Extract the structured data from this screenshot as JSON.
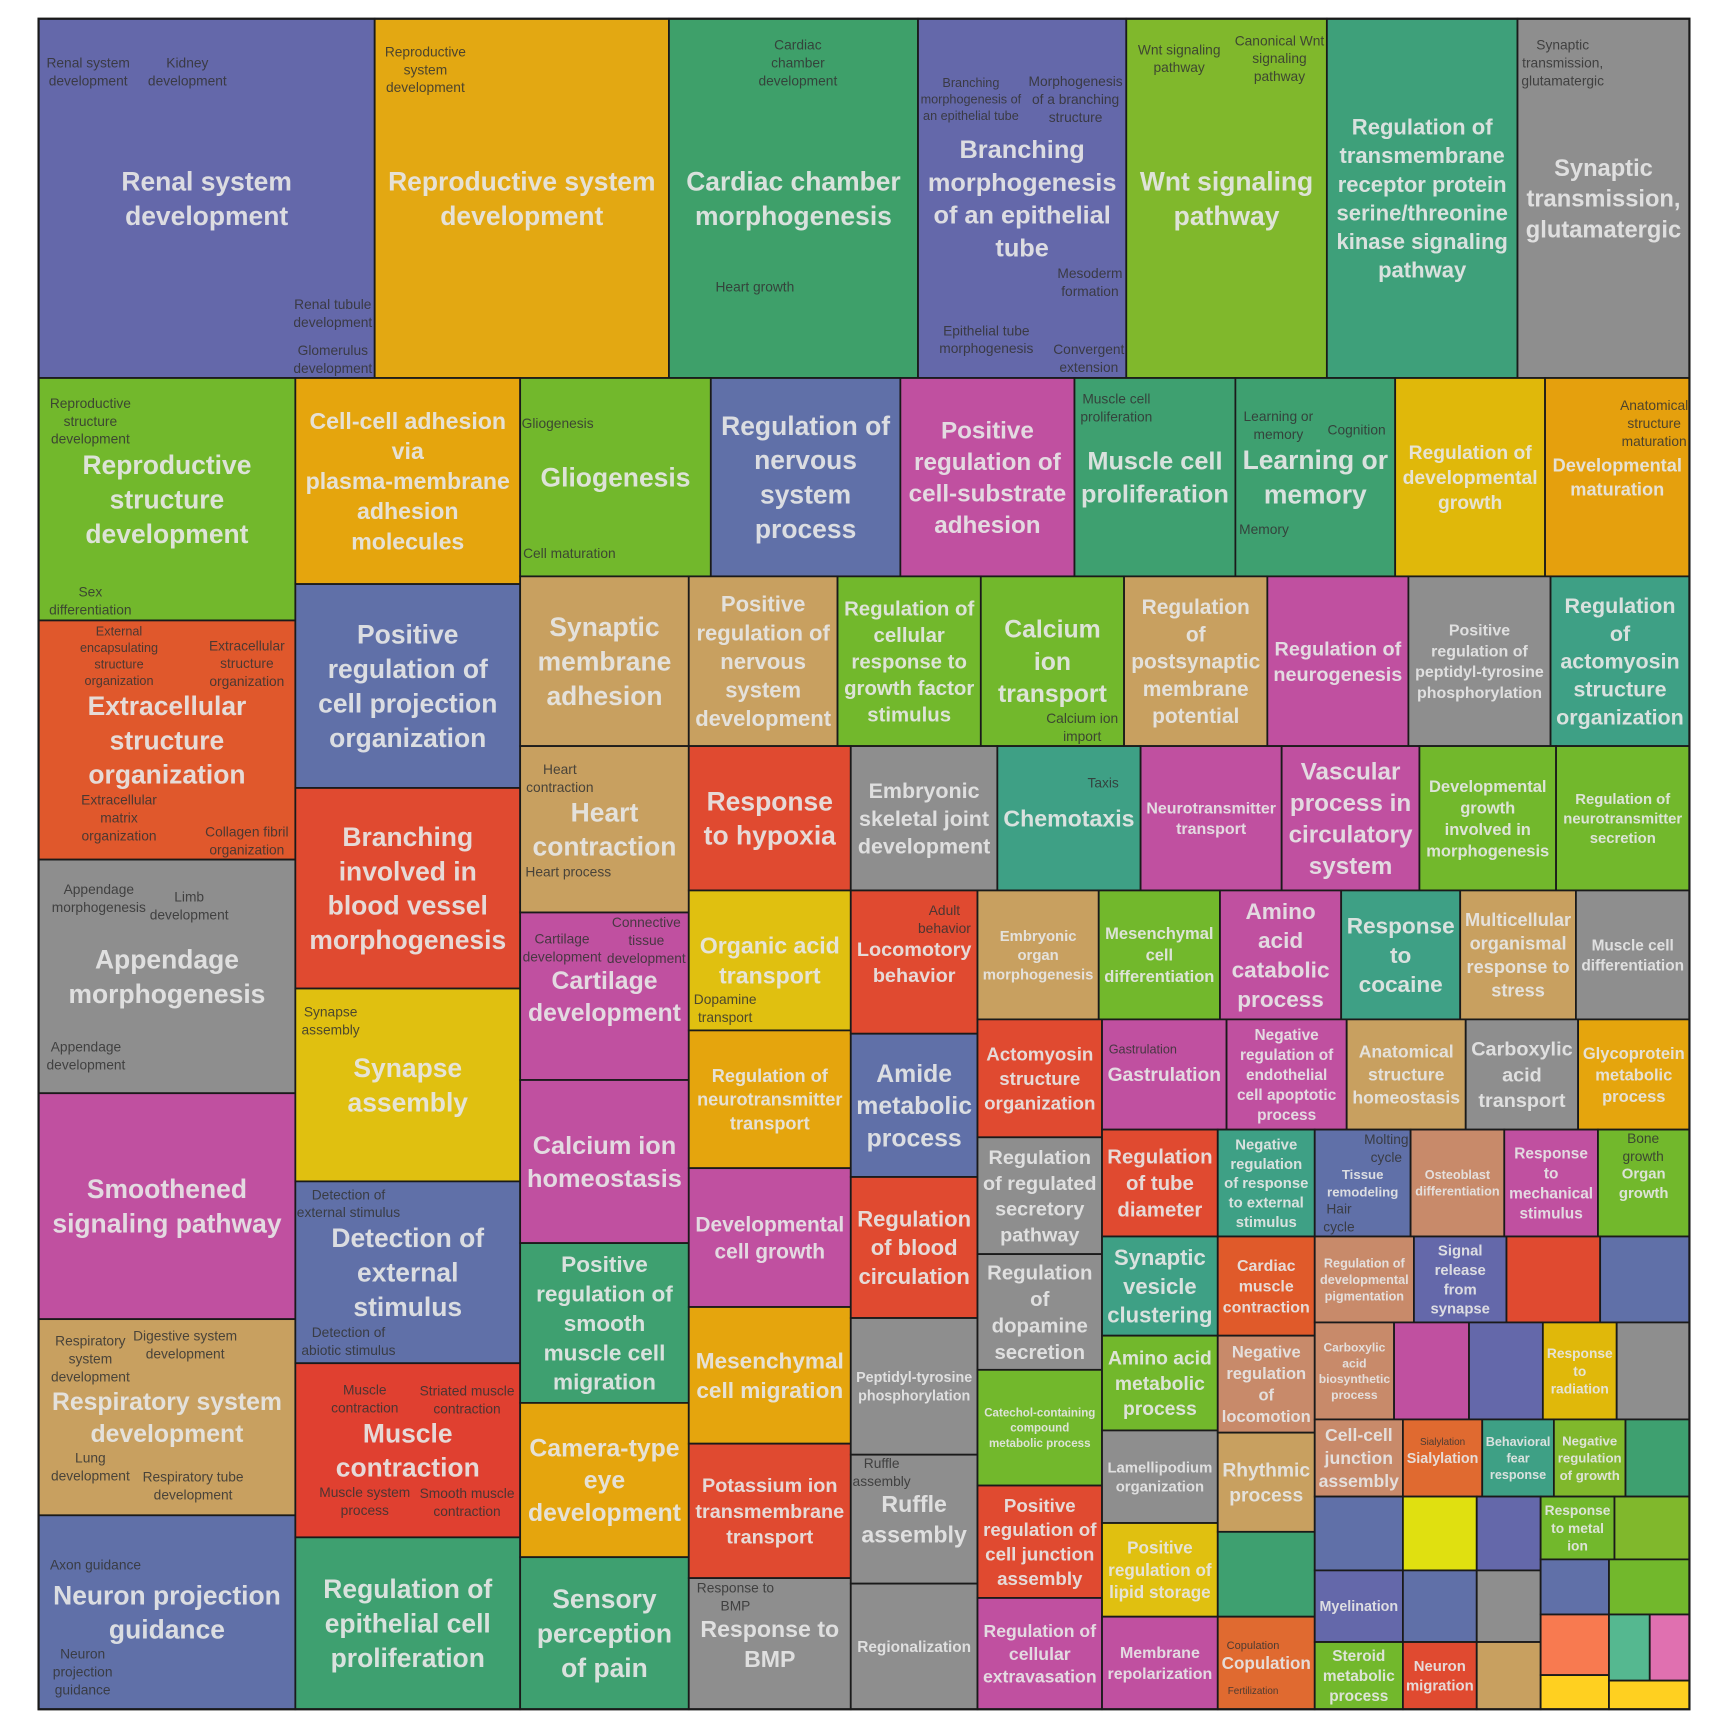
{
  "chart_data": {
    "type": "treemap",
    "title": "",
    "border_color": "#1a1a1a",
    "label_color": "#e6e6e6",
    "sublabel_color": "#333333",
    "groups": [
      {
        "label": "Renal system development",
        "color": "#6468aa",
        "subterms": [
          "Renal system development",
          "Kidney development",
          "Renal tubule development",
          "Glomerulus development"
        ]
      },
      {
        "label": "Reproductive system development",
        "color": "#e3a812",
        "subterms": [
          "Reproductive system development"
        ]
      },
      {
        "label": "Cardiac chamber morphogenesis",
        "color": "#3ea06a",
        "subterms": [
          "Cardiac chamber development",
          "Heart growth"
        ]
      },
      {
        "label": "Branching morphogenesis of an epithelial tube",
        "color": "#6468aa",
        "subterms": [
          "Branching morphogenesis of an epithelial tube",
          "Morphogenesis of a branching structure",
          "Mesoderm formation",
          "Epithelial tube morphogenesis",
          "Convergent extension"
        ]
      },
      {
        "label": "Wnt signaling pathway",
        "color": "#80b82c",
        "subterms": [
          "Wnt signaling pathway",
          "Canonical Wnt signaling pathway"
        ]
      },
      {
        "label": "Regulation of transmembrane receptor protein serine/threonine kinase signaling pathway",
        "color": "#3ea07a",
        "subterms": []
      },
      {
        "label": "Synaptic transmission, glutamatergic",
        "color": "#8e8e8e",
        "subterms": [
          "Synaptic transmission, glutamatergic"
        ]
      },
      {
        "label": "Reproductive structure development",
        "color": "#72b82c",
        "subterms": [
          "Reproductive structure development",
          "Sex differentiation"
        ]
      },
      {
        "label": "Cell-cell adhesion via plasma-membrane adhesion molecules",
        "color": "#e5a50d",
        "subterms": []
      },
      {
        "label": "Gliogenesis",
        "color": "#72b82c",
        "subterms": [
          "Gliogenesis",
          "Cell maturation"
        ]
      },
      {
        "label": "Regulation of nervous system process",
        "color": "#6070a8",
        "subterms": []
      },
      {
        "label": "Positive regulation of cell-substrate adhesion",
        "color": "#c050a0",
        "subterms": []
      },
      {
        "label": "Muscle cell proliferation",
        "color": "#3ea070",
        "subterms": [
          "Muscle cell proliferation"
        ]
      },
      {
        "label": "Learning or memory",
        "color": "#3ea070",
        "subterms": [
          "Learning or memory",
          "Cognition",
          "Memory"
        ]
      },
      {
        "label": "Regulation of developmental growth",
        "color": "#e0b80a",
        "subterms": []
      },
      {
        "label": "Developmental maturation",
        "color": "#e5a00d",
        "subterms": [
          "Anatomical structure maturation"
        ]
      },
      {
        "label": "Extracellular structure organization",
        "color": "#e0582c",
        "subterms": [
          "External encapsulating structure organization",
          "Extracellular structure organization",
          "Extracellular matrix organization",
          "Collagen fibril organization"
        ]
      },
      {
        "label": "Appendage morphogenesis",
        "color": "#8e8e8e",
        "subterms": [
          "Appendage morphogenesis",
          "Limb development",
          "Appendage development"
        ]
      },
      {
        "label": "Smoothened signaling pathway",
        "color": "#c050a0",
        "subterms": []
      },
      {
        "label": "Respiratory system development",
        "color": "#c8a060",
        "subterms": [
          "Respiratory system development",
          "Digestive system development",
          "Lung development",
          "Respiratory tube development"
        ]
      },
      {
        "label": "Neuron projection guidance",
        "color": "#6070a8",
        "subterms": [
          "Axon guidance",
          "Neuron projection guidance"
        ]
      },
      {
        "label": "Positive regulation of cell projection organization",
        "color": "#6070a8",
        "subterms": []
      },
      {
        "label": "Branching involved in blood vessel morphogenesis",
        "color": "#e04a30",
        "subterms": []
      },
      {
        "label": "Synapse assembly",
        "color": "#e0c010",
        "subterms": [
          "Synapse assembly"
        ]
      },
      {
        "label": "Detection of external stimulus",
        "color": "#6070a8",
        "subterms": [
          "Detection of external stimulus",
          "Detection of abiotic stimulus"
        ]
      },
      {
        "label": "Muscle contraction",
        "color": "#e04030",
        "subterms": [
          "Muscle contraction",
          "Striated muscle contraction",
          "Muscle system process",
          "Smooth muscle contraction"
        ]
      },
      {
        "label": "Regulation of epithelial cell proliferation",
        "color": "#3ea070",
        "subterms": []
      },
      {
        "label": "Synaptic membrane adhesion",
        "color": "#c8a060",
        "subterms": []
      },
      {
        "label": "Heart contraction",
        "color": "#c8a060",
        "subterms": [
          "Heart contraction",
          "Heart process"
        ]
      },
      {
        "label": "Cartilage development",
        "color": "#c050a0",
        "subterms": [
          "Cartilage development",
          "Connective tissue development"
        ]
      },
      {
        "label": "Calcium ion homeostasis",
        "color": "#c050a0",
        "subterms": []
      },
      {
        "label": "Positive regulation of smooth muscle cell migration",
        "color": "#3ea070",
        "subterms": []
      },
      {
        "label": "Camera-type eye development",
        "color": "#e5a50d",
        "subterms": []
      },
      {
        "label": "Sensory perception of pain",
        "color": "#3ea070",
        "subterms": []
      },
      {
        "label": "Positive regulation of nervous system development",
        "color": "#c8a060",
        "subterms": []
      },
      {
        "label": "Regulation of cellular response to growth factor stimulus",
        "color": "#72b82c",
        "subterms": []
      },
      {
        "label": "Calcium ion transport",
        "color": "#72b82c",
        "subterms": [
          "Calcium ion import"
        ]
      },
      {
        "label": "Regulation of postsynaptic membrane potential",
        "color": "#c8a060",
        "subterms": []
      },
      {
        "label": "Regulation of neurogenesis",
        "color": "#c050a0",
        "subterms": []
      },
      {
        "label": "Positive regulation of peptidyl-tyrosine phosphorylation",
        "color": "#8e8e8e",
        "subterms": []
      },
      {
        "label": "Regulation of actomyosin structure organization",
        "color": "#3ea085",
        "subterms": []
      },
      {
        "label": "Response to hypoxia",
        "color": "#e04a30",
        "subterms": []
      },
      {
        "label": "Embryonic skeletal joint development",
        "color": "#8e8e8e",
        "subterms": []
      },
      {
        "label": "Chemotaxis",
        "color": "#3ea085",
        "subterms": [
          "Taxis"
        ]
      },
      {
        "label": "Neurotransmitter transport",
        "color": "#c050a0",
        "subterms": []
      },
      {
        "label": "Vascular process in circulatory system",
        "color": "#c050a0",
        "subterms": []
      },
      {
        "label": "Developmental growth involved in morphogenesis",
        "color": "#72b82c",
        "subterms": []
      },
      {
        "label": "Regulation of neurotransmitter secretion",
        "color": "#72b82c",
        "subterms": []
      },
      {
        "label": "Organic acid transport",
        "color": "#e0c010",
        "subterms": [
          "Dopamine transport"
        ]
      },
      {
        "label": "Regulation of neurotransmitter transport",
        "color": "#e5a50d",
        "subterms": []
      },
      {
        "label": "Developmental cell growth",
        "color": "#c050a0",
        "subterms": []
      },
      {
        "label": "Mesenchymal cell migration",
        "color": "#e5a50d",
        "subterms": []
      },
      {
        "label": "Potassium ion transmembrane transport",
        "color": "#e04a30",
        "subterms": []
      },
      {
        "label": "Response to BMP",
        "color": "#8e8e8e",
        "subterms": [
          "Response to BMP"
        ]
      },
      {
        "label": "Locomotory behavior",
        "color": "#e04a30",
        "subterms": [
          "Adult behavior"
        ]
      },
      {
        "label": "Amide metabolic process",
        "color": "#6070a8",
        "subterms": []
      },
      {
        "label": "Regulation of blood circulation",
        "color": "#e04a30",
        "subterms": []
      },
      {
        "label": "Peptidyl-tyrosine phosphorylation",
        "color": "#8e8e8e",
        "subterms": []
      },
      {
        "label": "Ruffle assembly",
        "color": "#8e8e8e",
        "subterms": [
          "Ruffle assembly"
        ]
      },
      {
        "label": "Regionalization",
        "color": "#8e8e8e",
        "subterms": []
      },
      {
        "label": "Embryonic organ morphogenesis",
        "color": "#c8a060",
        "subterms": []
      },
      {
        "label": "Mesenchymal cell differentiation",
        "color": "#72b82c",
        "subterms": []
      },
      {
        "label": "Amino acid catabolic process",
        "color": "#c050a0",
        "subterms": []
      },
      {
        "label": "Response to cocaine",
        "color": "#3ea085",
        "subterms": []
      },
      {
        "label": "Multicellular organismal response to stress",
        "color": "#c8a060",
        "subterms": []
      },
      {
        "label": "Muscle cell differentiation",
        "color": "#8e8e8e",
        "subterms": []
      },
      {
        "label": "Actomyosin structure organization",
        "color": "#e04a30",
        "subterms": []
      },
      {
        "label": "Gastrulation",
        "color": "#c050a0",
        "subterms": [
          "Gastrulation"
        ]
      },
      {
        "label": "Negative regulation of endothelial cell apoptotic process",
        "color": "#c050a0",
        "subterms": []
      },
      {
        "label": "Anatomical structure homeostasis",
        "color": "#c8a060",
        "subterms": []
      },
      {
        "label": "Carboxylic acid transport",
        "color": "#8e8e8e",
        "subterms": []
      },
      {
        "label": "Glycoprotein metabolic process",
        "color": "#e5a50d",
        "subterms": []
      },
      {
        "label": "Regulation of regulated secretory pathway",
        "color": "#8e8e8e",
        "subterms": []
      },
      {
        "label": "Regulation of dopamine secretion",
        "color": "#8e8e8e",
        "subterms": []
      },
      {
        "label": "Catechol-containing compound metabolic process",
        "color": "#72b82c",
        "subterms": []
      },
      {
        "label": "Positive regulation of cell junction assembly",
        "color": "#e04a30",
        "subterms": []
      },
      {
        "label": "Regulation of cellular extravasation",
        "color": "#c050a0",
        "subterms": []
      },
      {
        "label": "Regulation of tube diameter",
        "color": "#e04a30",
        "subterms": []
      },
      {
        "label": "Synaptic vesicle clustering",
        "color": "#3ea085",
        "subterms": []
      },
      {
        "label": "Amino acid metabolic process",
        "color": "#72b82c",
        "subterms": []
      },
      {
        "label": "Lamellipodium organization",
        "color": "#8e8e8e",
        "subterms": []
      },
      {
        "label": "Positive regulation of lipid storage",
        "color": "#e0c010",
        "subterms": []
      },
      {
        "label": "Membrane repolarization",
        "color": "#c050a0",
        "subterms": []
      },
      {
        "label": "Negative regulation of response to external stimulus",
        "color": "#3ea085",
        "subterms": []
      },
      {
        "label": "Cardiac muscle contraction",
        "color": "#e05a2a",
        "subterms": []
      },
      {
        "label": "Negative regulation of locomotion",
        "color": "#c88a6a",
        "subterms": []
      },
      {
        "label": "Rhythmic process",
        "color": "#c8a060",
        "subterms": []
      },
      {
        "label": "",
        "color": "#3ea070",
        "subterms": []
      },
      {
        "label": "Copulation",
        "color": "#e06a30",
        "subterms": [
          "Copulation",
          "Fertilization"
        ]
      },
      {
        "label": "Tissue remodeling",
        "color": "#6070a8",
        "subterms": [
          "Hair cycle",
          "Molting cycle"
        ]
      },
      {
        "label": "Osteoblast differentiation",
        "color": "#c88a6a",
        "subterms": []
      },
      {
        "label": "Response to mechanical stimulus",
        "color": "#c050a0",
        "subterms": []
      },
      {
        "label": "Organ growth",
        "color": "#72b82c",
        "subterms": [
          "Bone growth"
        ]
      },
      {
        "label": "Regulation of developmental pigmentation",
        "color": "#c88a6a",
        "subterms": []
      },
      {
        "label": "Signal release from synapse",
        "color": "#6468aa",
        "subterms": []
      },
      {
        "label": "",
        "color": "#e04a30",
        "subterms": []
      },
      {
        "label": "",
        "color": "#6070a8",
        "subterms": []
      },
      {
        "label": "Carboxylic acid biosynthetic process",
        "color": "#c88a6a",
        "subterms": []
      },
      {
        "label": "",
        "color": "#c050a0",
        "subterms": []
      },
      {
        "label": "",
        "color": "#6468aa",
        "subterms": []
      },
      {
        "label": "Response to radiation",
        "color": "#e0b80a",
        "subterms": []
      },
      {
        "label": "",
        "color": "#8e8e8e",
        "subterms": []
      },
      {
        "label": "Cell-cell junction assembly",
        "color": "#c88a6a",
        "subterms": []
      },
      {
        "label": "Sialylation",
        "color": "#e06a30",
        "subterms": [
          "Sialylation"
        ]
      },
      {
        "label": "Behavioral fear response",
        "color": "#3ea085",
        "subterms": []
      },
      {
        "label": "Negative regulation of growth",
        "color": "#80b82c",
        "subterms": []
      },
      {
        "label": "",
        "color": "#3ea070",
        "subterms": []
      },
      {
        "label": "",
        "color": "#6070a8",
        "subterms": []
      },
      {
        "label": "",
        "color": "#e0e010",
        "subterms": []
      },
      {
        "label": "",
        "color": "#6468aa",
        "subterms": []
      },
      {
        "label": "Response to metal ion",
        "color": "#72b82c",
        "subterms": []
      },
      {
        "label": "",
        "color": "#80b82c",
        "subterms": []
      },
      {
        "label": "Myelination",
        "color": "#6468aa",
        "subterms": []
      },
      {
        "label": "",
        "color": "#6070a8",
        "subterms": []
      },
      {
        "label": "",
        "color": "#8e8e8e",
        "subterms": []
      },
      {
        "label": "",
        "color": "#6070a8",
        "subterms": []
      },
      {
        "label": "",
        "color": "#72b82c",
        "subterms": []
      },
      {
        "label": "Steroid metabolic process",
        "color": "#72b82c",
        "subterms": []
      },
      {
        "label": "Neuron migration",
        "color": "#e04a30",
        "subterms": []
      },
      {
        "label": "",
        "color": "#c8a060",
        "subterms": []
      },
      {
        "label": "",
        "color": "#f87a50",
        "subterms": []
      },
      {
        "label": "",
        "color": "#ffd020",
        "subterms": []
      },
      {
        "label": "",
        "color": "#55b890",
        "subterms": []
      },
      {
        "label": "",
        "color": "#e070b0",
        "subterms": []
      },
      {
        "label": "",
        "color": "#ffd020",
        "subterms": []
      }
    ]
  }
}
